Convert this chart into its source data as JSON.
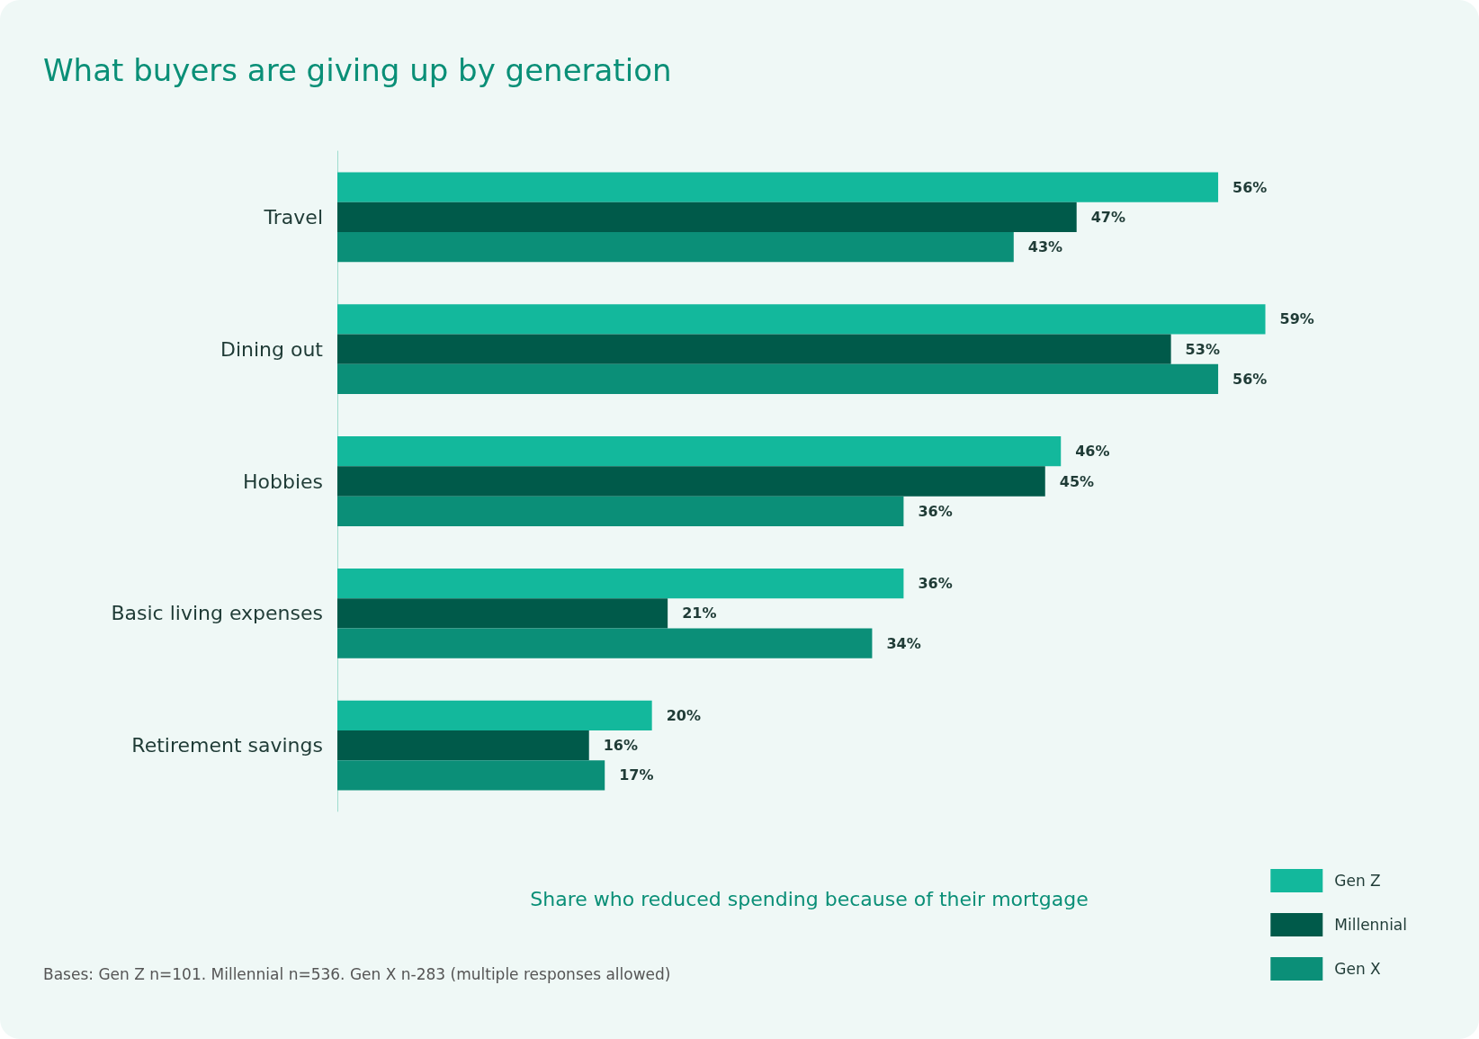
{
  "chart_data": {
    "type": "bar",
    "orientation": "horizontal",
    "title": "What buyers are giving up by generation",
    "xlabel": "Share who reduced spending because of their mortgage",
    "categories": [
      "Travel",
      "Dining out",
      "Hobbies",
      "Basic living expenses",
      "Retirement savings"
    ],
    "series": [
      {
        "name": "Gen Z",
        "color": "#13b89c",
        "values": [
          56,
          59,
          46,
          36,
          20
        ],
        "value_labels": [
          "56%",
          "59%",
          "46%",
          "36%",
          "20%"
        ]
      },
      {
        "name": "Millennial",
        "color": "#005a4a",
        "values": [
          47,
          53,
          45,
          21,
          16
        ],
        "value_labels": [
          "47%",
          "53%",
          "45%",
          "21%",
          "16%"
        ]
      },
      {
        "name": "Gen X",
        "color": "#0b8f78",
        "values": [
          43,
          56,
          36,
          34,
          17
        ],
        "value_labels": [
          "43%",
          "56%",
          "36%",
          "34%",
          "17%"
        ]
      }
    ],
    "tick_labels": "y",
    "grid": false,
    "legend": "bottom right",
    "annotations": [
      "Bases: Gen Z n=101. Millennial n=536. Gen X n-283 (multiple responses allowed)"
    ]
  }
}
